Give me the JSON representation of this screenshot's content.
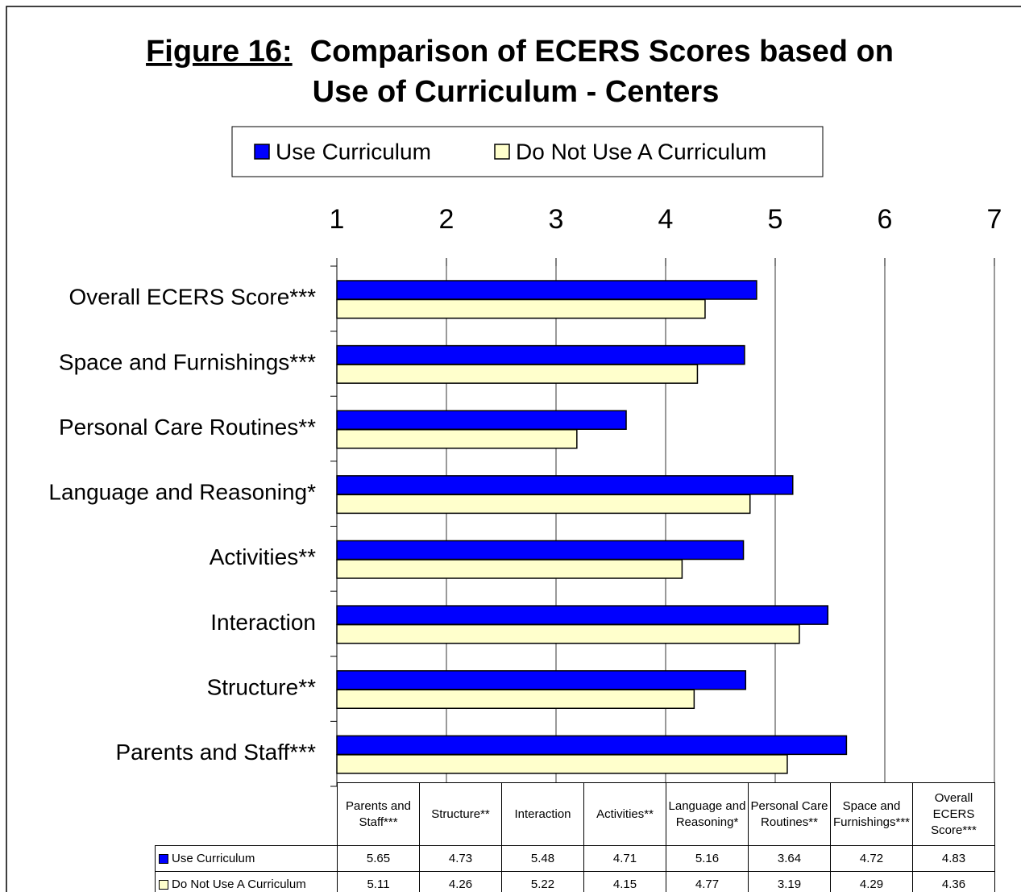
{
  "chart_data": {
    "type": "bar",
    "orientation": "horizontal",
    "figure_label": "Figure 16:",
    "title_lines": [
      "Comparison of ECERS Scores based on",
      "Use of Curriculum - Centers"
    ],
    "categories": [
      "Parents and Staff***",
      "Structure**",
      "Interaction",
      "Activities**",
      "Language and Reasoning*",
      "Personal Care Routines**",
      "Space and Furnishings***",
      "Overall ECERS Score***"
    ],
    "series": [
      {
        "name": "Use Curriculum",
        "color": "#0000ff",
        "values": [
          5.65,
          4.73,
          5.48,
          4.71,
          5.16,
          3.64,
          4.72,
          4.83
        ]
      },
      {
        "name": "Do Not Use A Curriculum",
        "color": "#ffffcc",
        "values": [
          5.11,
          4.26,
          5.22,
          4.15,
          4.77,
          3.19,
          4.29,
          4.36
        ]
      }
    ],
    "xlim": [
      1,
      7
    ],
    "xticks": [
      1,
      2,
      3,
      4,
      5,
      6,
      7
    ],
    "grid": true,
    "legend": "top",
    "data_table": true
  }
}
